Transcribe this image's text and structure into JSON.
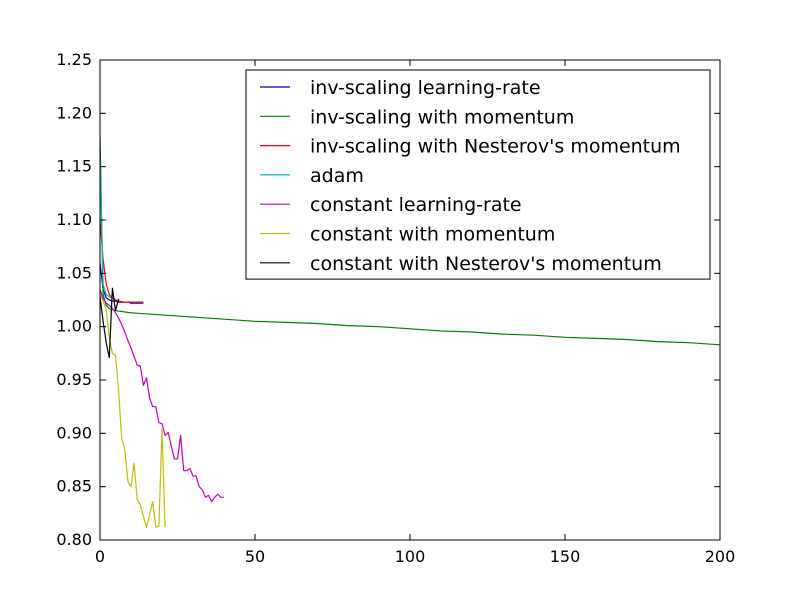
{
  "chart_data": {
    "type": "line",
    "title": "",
    "xlabel": "",
    "ylabel": "",
    "xlim": [
      0,
      200
    ],
    "ylim": [
      0.8,
      1.25
    ],
    "xticks": [
      0,
      50,
      100,
      150,
      200
    ],
    "xtick_labels": [
      "0",
      "50",
      "100",
      "150",
      "200"
    ],
    "yticks": [
      0.8,
      0.85,
      0.9,
      0.95,
      1.0,
      1.05,
      1.1,
      1.15,
      1.2,
      1.25
    ],
    "ytick_labels": [
      "0.80",
      "0.85",
      "0.90",
      "0.95",
      "1.00",
      "1.05",
      "1.10",
      "1.15",
      "1.20",
      "1.25"
    ],
    "grid": false,
    "legend_position": "top-right",
    "series": [
      {
        "name": "inv-scaling learning-rate",
        "color": "#0000bf",
        "x": [
          0,
          1,
          2,
          3,
          4,
          5,
          6,
          7,
          8,
          9,
          10,
          11,
          12,
          13,
          14
        ],
        "y": [
          1.06,
          1.035,
          1.027,
          1.025,
          1.024,
          1.024,
          1.023,
          1.023,
          1.023,
          1.023,
          1.022,
          1.022,
          1.022,
          1.022,
          1.022
        ]
      },
      {
        "name": "inv-scaling with momentum",
        "color": "#008000",
        "x": [
          0,
          1,
          2,
          3,
          4,
          5,
          10,
          20,
          30,
          40,
          50,
          60,
          70,
          80,
          90,
          100,
          110,
          120,
          130,
          140,
          150,
          160,
          170,
          180,
          190,
          200
        ],
        "y": [
          1.178,
          1.03,
          1.02,
          1.017,
          1.016,
          1.015,
          1.013,
          1.011,
          1.009,
          1.007,
          1.005,
          1.004,
          1.003,
          1.001,
          1.0,
          0.998,
          0.996,
          0.995,
          0.993,
          0.992,
          0.99,
          0.989,
          0.988,
          0.986,
          0.985,
          0.983
        ]
      },
      {
        "name": "inv-scaling with Nesterov's momentum",
        "color": "#ff0000",
        "x": [
          0,
          1,
          2,
          3,
          4,
          5,
          6,
          8,
          10,
          12,
          14
        ],
        "y": [
          1.1,
          1.063,
          1.04,
          1.03,
          1.027,
          1.025,
          1.024,
          1.023,
          1.023,
          1.023,
          1.023
        ]
      },
      {
        "name": "adam",
        "color": "#00bfbf",
        "x": [
          0,
          1,
          2,
          3,
          4,
          5
        ],
        "y": [
          1.16,
          1.04,
          1.03,
          1.028,
          1.027,
          1.026
        ]
      },
      {
        "name": "constant learning-rate",
        "color": "#bf00bf",
        "x": [
          0,
          1,
          2,
          3,
          4,
          5,
          6,
          7,
          8,
          9,
          10,
          11,
          12,
          13,
          14,
          15,
          16,
          17,
          18,
          19,
          20,
          21,
          22,
          23,
          24,
          25,
          26,
          27,
          28,
          29,
          30,
          31,
          32,
          33,
          34,
          35,
          36,
          37,
          38,
          39,
          40
        ],
        "y": [
          1.035,
          1.026,
          1.022,
          1.02,
          1.017,
          1.013,
          1.008,
          1.002,
          0.995,
          0.987,
          0.98,
          0.972,
          0.964,
          0.963,
          0.945,
          0.952,
          0.933,
          0.925,
          0.925,
          0.91,
          0.909,
          0.898,
          0.901,
          0.888,
          0.876,
          0.876,
          0.898,
          0.865,
          0.865,
          0.867,
          0.86,
          0.86,
          0.85,
          0.847,
          0.84,
          0.842,
          0.836,
          0.84,
          0.843,
          0.84,
          0.84
        ]
      },
      {
        "name": "constant with momentum",
        "color": "#bfbf00",
        "x": [
          0,
          1,
          2,
          3,
          4,
          5,
          6,
          7,
          8,
          9,
          10,
          11,
          12,
          13,
          14,
          15,
          16,
          17,
          18,
          19,
          20,
          21
        ],
        "y": [
          1.03,
          1.024,
          1.016,
          0.99,
          0.975,
          0.973,
          0.94,
          0.895,
          0.885,
          0.855,
          0.85,
          0.872,
          0.838,
          0.833,
          0.822,
          0.812,
          0.824,
          0.836,
          0.812,
          0.813,
          0.904,
          0.812
        ]
      },
      {
        "name": "constant with Nesterov's momentum",
        "color": "#000000",
        "x": [
          0,
          1,
          2,
          3,
          4,
          5,
          6
        ],
        "y": [
          1.028,
          1.005,
          0.985,
          0.971,
          1.036,
          1.015,
          1.026
        ]
      }
    ]
  }
}
